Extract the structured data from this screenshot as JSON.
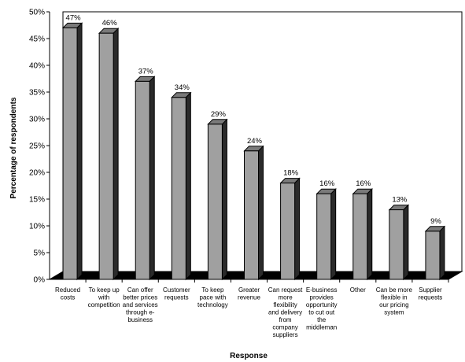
{
  "chart_data": {
    "type": "bar",
    "xlabel": "Response",
    "ylabel": "Percentage of respondents",
    "ylim": [
      0,
      50
    ],
    "yticks": [
      "0%",
      "5%",
      "10%",
      "15%",
      "20%",
      "25%",
      "30%",
      "35%",
      "40%",
      "45%",
      "50%"
    ],
    "grid": false,
    "style": "3d",
    "bar_color": "#a0a0a0",
    "categories": [
      [
        "Reduced",
        "costs"
      ],
      [
        "To keep up",
        "with",
        "competition"
      ],
      [
        "Can offer",
        "better prices",
        "and services",
        "through e-",
        "business"
      ],
      [
        "Customer",
        "requests"
      ],
      [
        "To keep",
        "pace with",
        "technology"
      ],
      [
        "Greater",
        "revenue"
      ],
      [
        "Can request",
        "more",
        "flexibility",
        "and delivery",
        "from",
        "company",
        "suppliers"
      ],
      [
        "E-business",
        "provides",
        "opportunity",
        "to cut out",
        "the",
        "middleman"
      ],
      [
        "Other"
      ],
      [
        "Can be more",
        "flexible in",
        "our pricing",
        "system"
      ],
      [
        "Supplier",
        "requests"
      ]
    ],
    "values": [
      47,
      46,
      37,
      34,
      29,
      24,
      18,
      16,
      16,
      13,
      9
    ],
    "value_labels": [
      "47%",
      "46%",
      "37%",
      "34%",
      "29%",
      "24%",
      "18%",
      "16%",
      "16%",
      "13%",
      "9%"
    ]
  }
}
